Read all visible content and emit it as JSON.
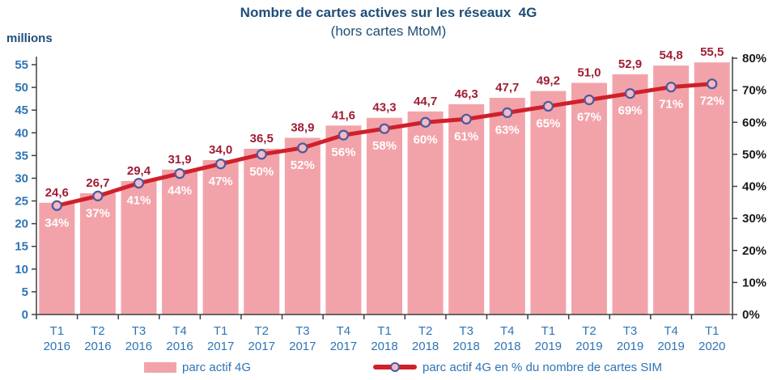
{
  "title": "Nombre de cartes actives sur les réseaux  4G",
  "subtitle": "(hors cartes MtoM)",
  "left_axis_unit_label": "millions",
  "legend": {
    "bar_label": "parc actif 4G",
    "line_label": "parc actif 4G en % du nombre de cartes SIM"
  },
  "colors": {
    "title_navy": "#1F4E79",
    "axis_blue": "#2E74B5",
    "bar_pink": "#F2A3AA",
    "line_red": "#D0202B",
    "value_label_red": "#A01D35",
    "marker_fill": "#F4B9C1",
    "marker_stroke": "#4C5AA0",
    "right_axis_text": "#1A1A1A",
    "axis_line": "#404040",
    "percent_label_white": "#FFFFFF"
  },
  "chart_data": {
    "type": "bar",
    "title": "Nombre de cartes actives sur les réseaux 4G",
    "subtitle": "(hors cartes MtoM)",
    "grid": false,
    "legend_position": "bottom",
    "categories": [
      [
        "T1",
        "2016"
      ],
      [
        "T2",
        "2016"
      ],
      [
        "T3",
        "2016"
      ],
      [
        "T4",
        "2016"
      ],
      [
        "T1",
        "2017"
      ],
      [
        "T2",
        "2017"
      ],
      [
        "T3",
        "2017"
      ],
      [
        "T4",
        "2017"
      ],
      [
        "T1",
        "2018"
      ],
      [
        "T2",
        "2018"
      ],
      [
        "T3",
        "2018"
      ],
      [
        "T4",
        "2018"
      ],
      [
        "T1",
        "2019"
      ],
      [
        "T2",
        "2019"
      ],
      [
        "T3",
        "2019"
      ],
      [
        "T4",
        "2019"
      ],
      [
        "T1",
        "2020"
      ]
    ],
    "series": [
      {
        "name": "parc actif 4G",
        "type": "bar",
        "axis": "left",
        "values": [
          24.6,
          26.7,
          29.4,
          31.9,
          34.0,
          36.5,
          38.9,
          41.6,
          43.3,
          44.7,
          46.3,
          47.7,
          49.2,
          51.0,
          52.9,
          54.8,
          55.5
        ],
        "labels": [
          "24,6",
          "26,7",
          "29,4",
          "31,9",
          "34,0",
          "36,5",
          "38,9",
          "41,6",
          "43,3",
          "44,7",
          "46,3",
          "47,7",
          "49,2",
          "51,0",
          "52,9",
          "54,8",
          "55,5"
        ]
      },
      {
        "name": "parc actif 4G en % du nombre de cartes SIM",
        "type": "line",
        "axis": "right",
        "values": [
          34,
          37,
          41,
          44,
          47,
          50,
          52,
          56,
          58,
          60,
          61,
          63,
          65,
          67,
          69,
          71,
          72
        ],
        "labels": [
          "34%",
          "37%",
          "41%",
          "44%",
          "47%",
          "50%",
          "52%",
          "56%",
          "58%",
          "60%",
          "61%",
          "63%",
          "65%",
          "67%",
          "69%",
          "71%",
          "72%"
        ]
      }
    ],
    "left_axis": {
      "label": "millions",
      "min": 0,
      "max": 55,
      "step": 5
    },
    "right_axis": {
      "min": 0,
      "max": 80,
      "step": 10,
      "suffix": "%"
    }
  }
}
